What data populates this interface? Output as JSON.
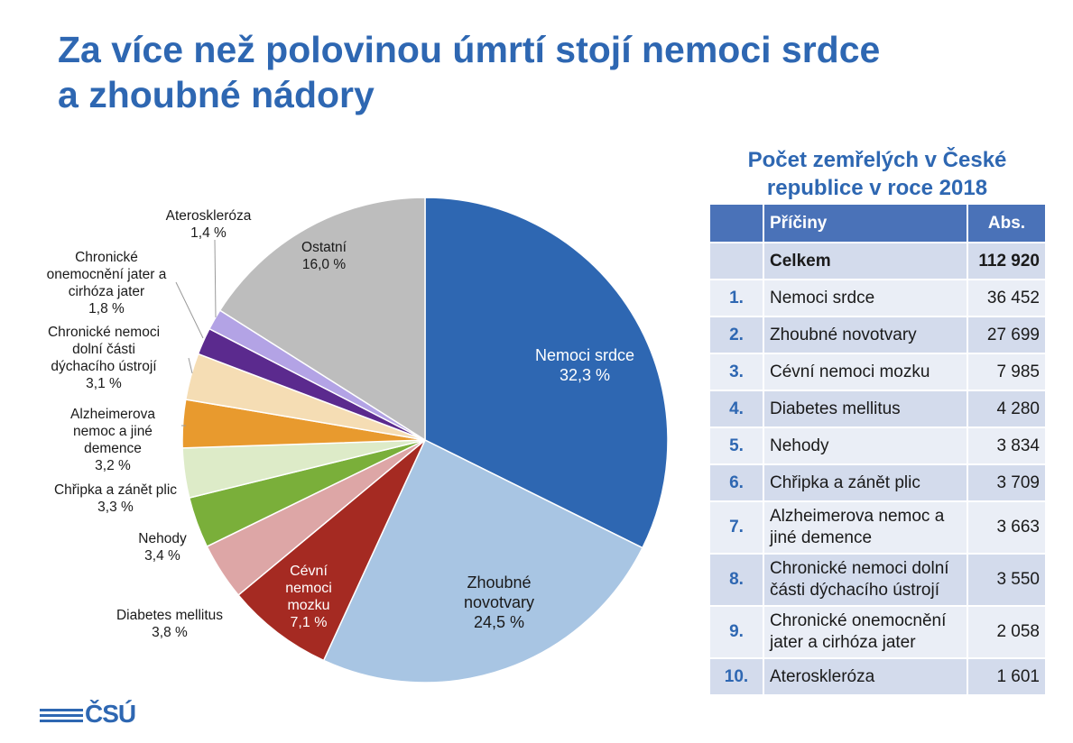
{
  "title": {
    "line1": "Za více než polovinou úmrtí stojí nemoci srdce",
    "line2": "a zhoubné nádory"
  },
  "chart_data": {
    "type": "pie",
    "slices": [
      {
        "label": [
          "Nemoci srdce"
        ],
        "pct": "32,3 %",
        "value": 32.3,
        "color": "#2E67B2",
        "text_color": "#ffffff"
      },
      {
        "label": [
          "Zhoubné",
          "novotvary"
        ],
        "pct": "24,5 %",
        "value": 24.5,
        "color": "#A8C5E3",
        "text_color": "#1a1a1a"
      },
      {
        "label": [
          "Cévní",
          "nemoci",
          "mozku"
        ],
        "pct": "7,1 %",
        "value": 7.1,
        "color": "#A52A22",
        "text_color": "#ffffff"
      },
      {
        "label": [
          "Diabetes mellitus"
        ],
        "pct": "3,8 %",
        "value": 3.8,
        "color": "#DDA6A6",
        "text_color": "#1a1a1a"
      },
      {
        "label": [
          "Nehody"
        ],
        "pct": "3,4 %",
        "value": 3.4,
        "color": "#7AAF3A",
        "text_color": "#1a1a1a"
      },
      {
        "label": [
          "Chřipka a zánět plic"
        ],
        "pct": "3,3 %",
        "value": 3.3,
        "color": "#DDEBC8",
        "text_color": "#1a1a1a"
      },
      {
        "label": [
          "Alzheimerova",
          "nemoc a jiné",
          "demence"
        ],
        "pct": "3,2 %",
        "value": 3.2,
        "color": "#E89A2E",
        "text_color": "#1a1a1a"
      },
      {
        "label": [
          "Chronické nemoci",
          "dolní části",
          "dýchacího ústrojí"
        ],
        "pct": "3,1 %",
        "value": 3.1,
        "color": "#F5DDB4",
        "text_color": "#1a1a1a"
      },
      {
        "label": [
          "Chronické",
          "onemocnění jater a",
          "cirhóza jater"
        ],
        "pct": "1,8 %",
        "value": 1.8,
        "color": "#5B2A8E",
        "text_color": "#1a1a1a"
      },
      {
        "label": [
          "Ateroskleróza"
        ],
        "pct": "1,4 %",
        "value": 1.4,
        "color": "#B3A3E5",
        "text_color": "#1a1a1a"
      },
      {
        "label": [
          "Ostatní"
        ],
        "pct": "16,0 %",
        "value": 16.0,
        "color": "#BDBDBD",
        "text_color": "#1a1a1a"
      }
    ]
  },
  "table": {
    "title_line1": "Počet zemřelých v České",
    "title_line2": "republice v roce 2018",
    "header_cause": "Příčiny",
    "header_abs": "Abs.",
    "total_label": "Celkem",
    "total_value": "112 920",
    "rows": [
      {
        "num": "1.",
        "cause": [
          "Nemoci srdce"
        ],
        "value": "36 452"
      },
      {
        "num": "2.",
        "cause": [
          "Zhoubné novotvary"
        ],
        "value": "27 699"
      },
      {
        "num": "3.",
        "cause": [
          "Cévní nemoci mozku"
        ],
        "value": "7 985"
      },
      {
        "num": "4.",
        "cause": [
          "Diabetes mellitus"
        ],
        "value": "4 280"
      },
      {
        "num": "5.",
        "cause": [
          "Nehody"
        ],
        "value": "3 834"
      },
      {
        "num": "6.",
        "cause": [
          "Chřipka a zánět plic"
        ],
        "value": "3 709"
      },
      {
        "num": "7.",
        "cause": [
          "Alzheimerova nemoc a",
          "jiné demence"
        ],
        "value": "3 663"
      },
      {
        "num": "8.",
        "cause": [
          "Chronické nemoci dolní",
          "části dýchacího ústrojí"
        ],
        "value": "3 550"
      },
      {
        "num": "9.",
        "cause": [
          "Chronické onemocnění",
          "jater a cirhóza jater"
        ],
        "value": "2 058"
      },
      {
        "num": "10.",
        "cause": [
          "Ateroskleróza"
        ],
        "value": "1 601"
      }
    ]
  },
  "logo": {
    "text": "ČSÚ"
  }
}
